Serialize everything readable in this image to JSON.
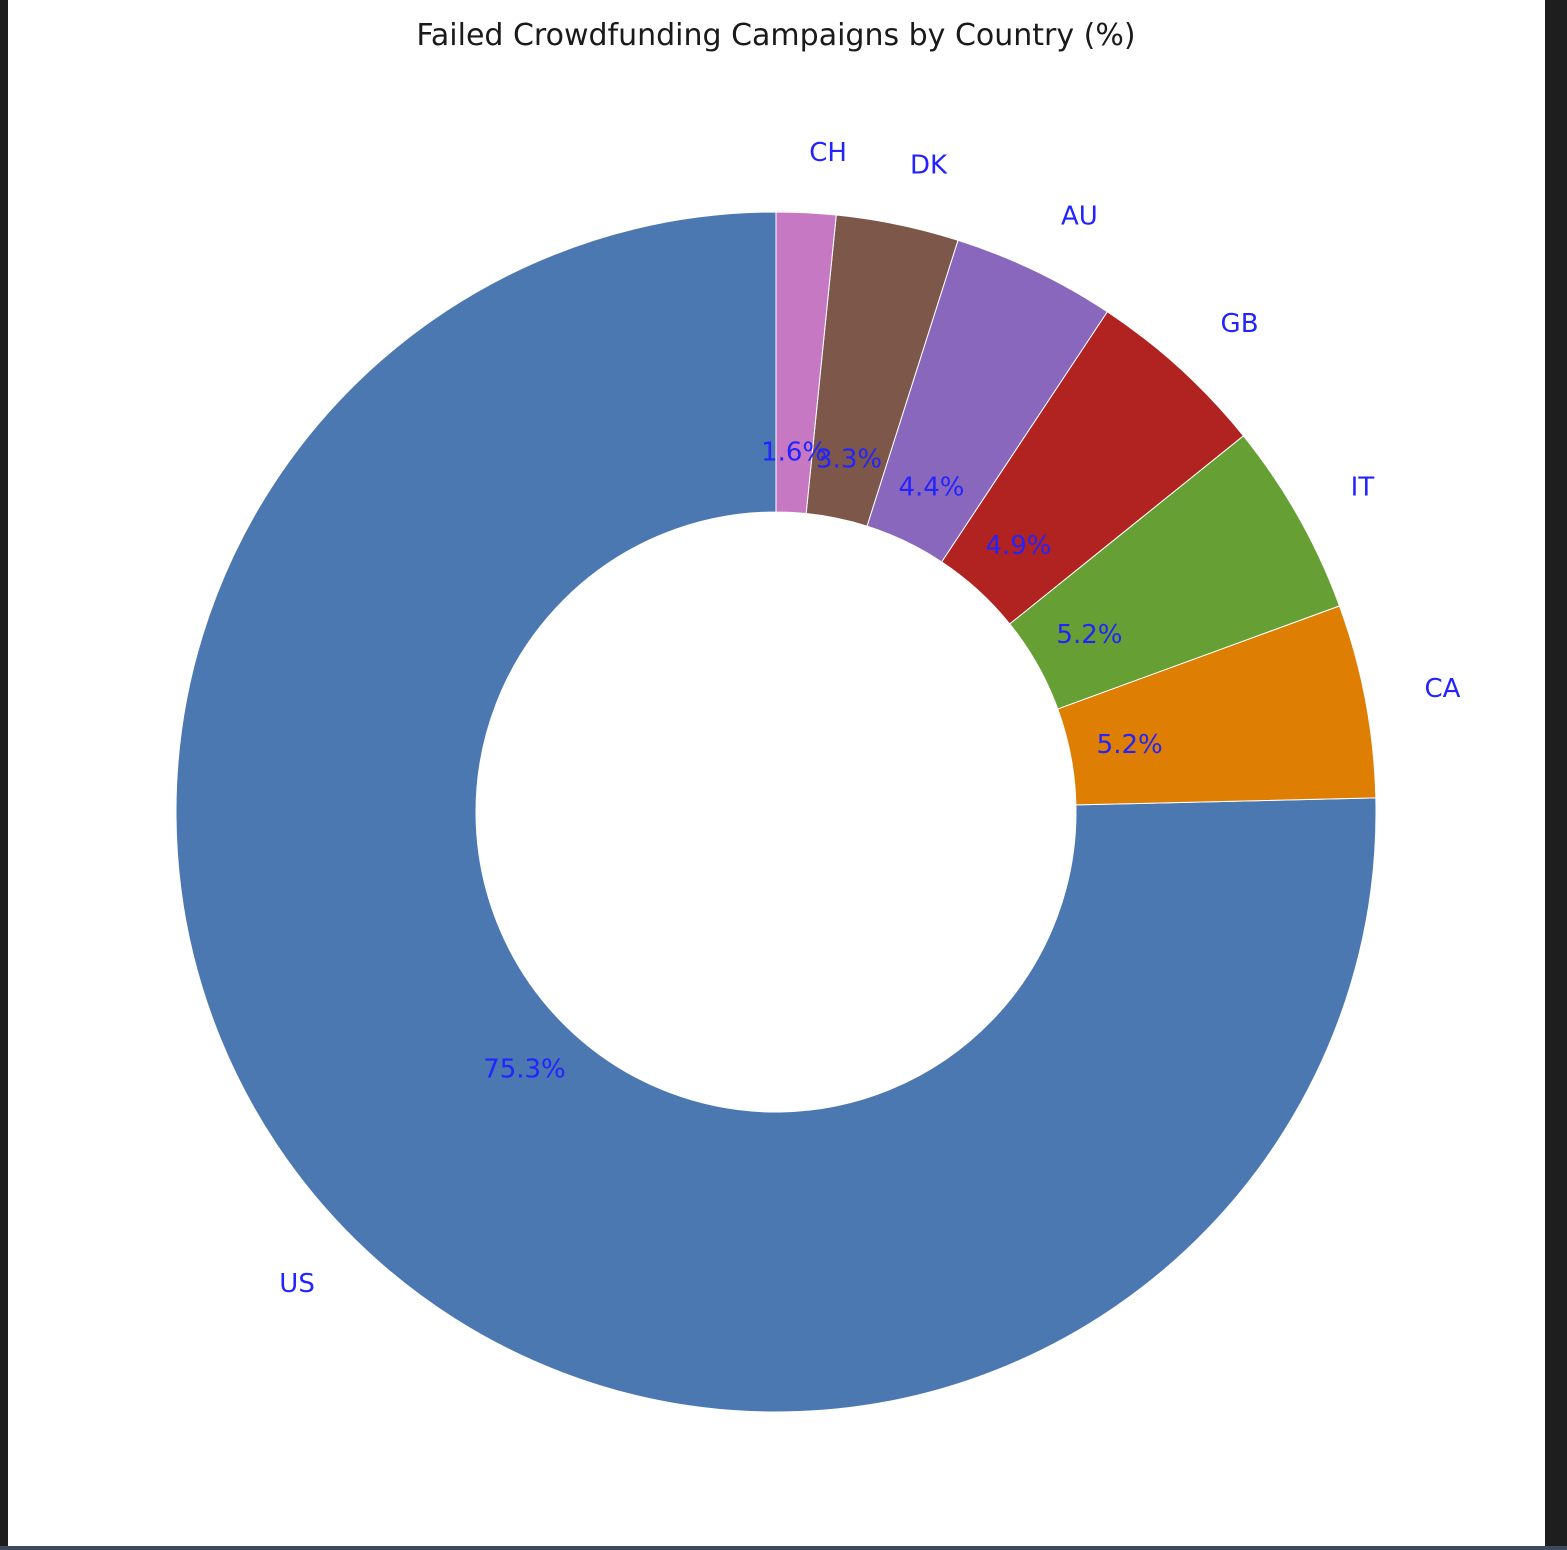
{
  "chart_data": {
    "type": "pie",
    "style": "donut",
    "title": "Failed Crowdfunding Campaigns by Country (%)",
    "categories": [
      "US",
      "CA",
      "IT",
      "GB",
      "AU",
      "DK",
      "CH"
    ],
    "values": [
      75.3,
      5.2,
      5.2,
      4.9,
      4.4,
      3.3,
      1.6
    ],
    "value_labels": [
      "75.3%",
      "5.2%",
      "5.2%",
      "4.9%",
      "4.4%",
      "3.3%",
      "1.6%"
    ],
    "colors": [
      "#4c78b1",
      "#de7e02",
      "#669f34",
      "#b12320",
      "#8867bc",
      "#7d5749",
      "#c678c2"
    ],
    "start_angle_deg": 90,
    "direction": "counterclockwise",
    "label_color": "#2323ff",
    "legend": "none",
    "grid": false
  }
}
